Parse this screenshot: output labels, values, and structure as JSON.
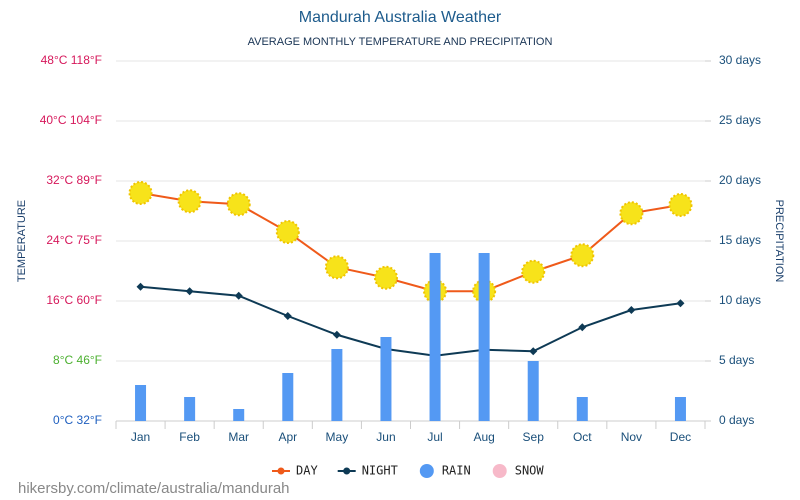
{
  "chart_data": {
    "type": "line",
    "title": "Mandurah Australia Weather",
    "subtitle": "AVERAGE MONTHLY TEMPERATURE AND PRECIPITATION",
    "ylabel": "TEMPERATURE",
    "y2label": "PRECIPITATION",
    "categories": [
      "Jan",
      "Feb",
      "Mar",
      "Apr",
      "May",
      "Jun",
      "Jul",
      "Aug",
      "Sep",
      "Oct",
      "Nov",
      "Dec"
    ],
    "ylim": [
      0,
      48
    ],
    "yticks": [
      {
        "value": 0,
        "label": "0°C 32°F"
      },
      {
        "value": 8,
        "label": "8°C 46°F"
      },
      {
        "value": 16,
        "label": "16°C 60°F"
      },
      {
        "value": 24,
        "label": "24°C 75°F"
      },
      {
        "value": 32,
        "label": "32°C 89°F"
      },
      {
        "value": 40,
        "label": "40°C 104°F"
      },
      {
        "value": 48,
        "label": "48°C 118°F"
      }
    ],
    "ytick_colors": [
      "#1f5fbf",
      "#4cb030",
      "#d6185b",
      "#d6185b",
      "#d6185b",
      "#d6185b",
      "#d6185b"
    ],
    "y2lim": [
      0,
      30
    ],
    "y2ticks": [
      {
        "value": 0,
        "label": "0 days"
      },
      {
        "value": 5,
        "label": "5 days"
      },
      {
        "value": 10,
        "label": "10 days"
      },
      {
        "value": 15,
        "label": "15 days"
      },
      {
        "value": 20,
        "label": "20 days"
      },
      {
        "value": 25,
        "label": "25 days"
      },
      {
        "value": 30,
        "label": "30 days"
      }
    ],
    "grid": true,
    "series": [
      {
        "name": "DAY",
        "type": "line",
        "color": "#ef5a1a",
        "values": [
          30.4,
          29.3,
          28.9,
          25.2,
          20.5,
          19.1,
          17.3,
          17.3,
          19.9,
          22.1,
          27.7,
          28.8
        ]
      },
      {
        "name": "NIGHT",
        "type": "line",
        "color": "#0e3a55",
        "values": [
          17.9,
          17.3,
          16.7,
          14.0,
          11.5,
          9.6,
          8.7,
          9.5,
          9.3,
          12.5,
          14.8,
          15.7
        ]
      },
      {
        "name": "RAIN",
        "type": "bar",
        "axis": "y2",
        "color": "#5499f3",
        "values": [
          3,
          2,
          1,
          4,
          6,
          7,
          14,
          14,
          5,
          2,
          0,
          2
        ]
      },
      {
        "name": "SNOW",
        "type": "bar",
        "axis": "y2",
        "color": "#f7b9c9",
        "values": [
          0,
          0,
          0,
          0,
          0,
          0,
          0,
          0,
          0,
          0,
          0,
          0
        ]
      }
    ],
    "footer": "hikersby.com/climate/australia/mandurah"
  }
}
